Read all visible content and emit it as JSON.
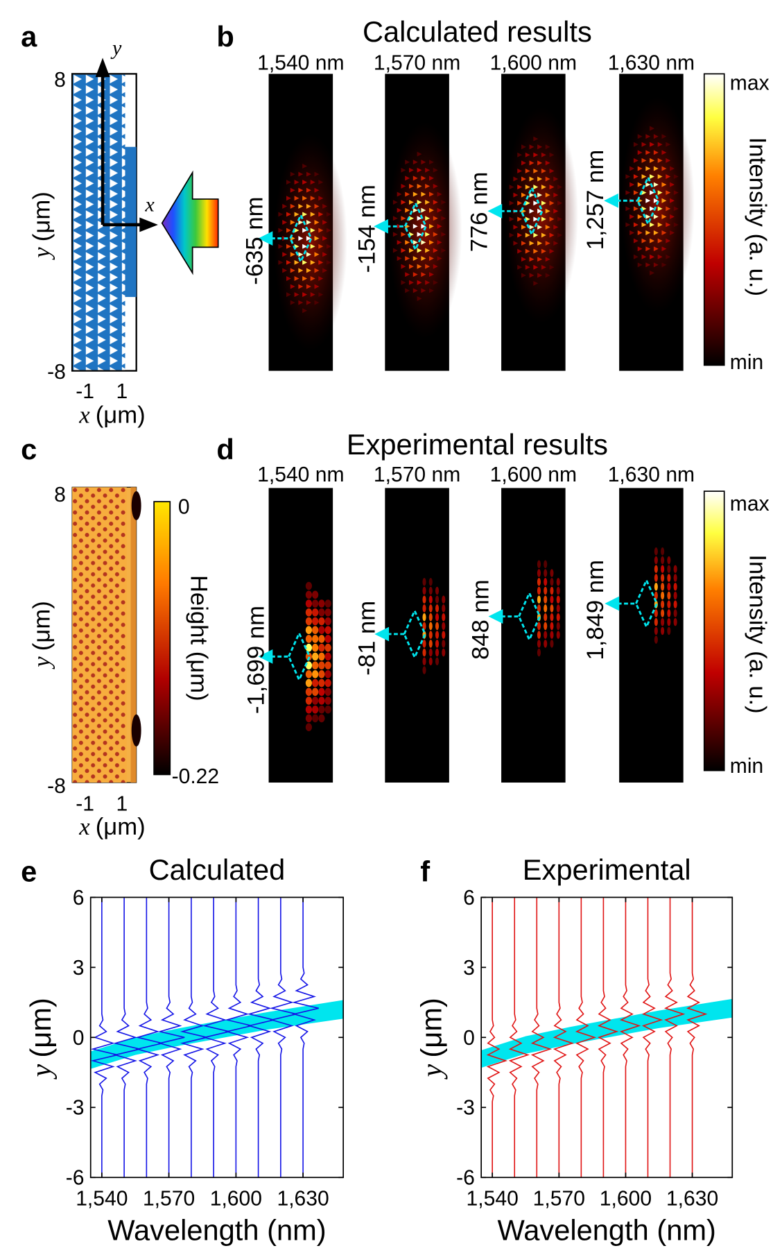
{
  "panels": {
    "a": {
      "letter": "a",
      "yticks": [
        8,
        -8
      ],
      "xticks": [
        -1,
        1
      ],
      "ylabel": [
        "y",
        "(μm)"
      ],
      "xlabel": [
        "x",
        "(μm)"
      ],
      "arrow_labels": [
        "y",
        "x"
      ]
    },
    "b": {
      "letter": "b",
      "title": "Calculated results",
      "columns": [
        "1,540 nm",
        "1,570 nm",
        "1,600 nm",
        "1,630 nm"
      ],
      "shifts": [
        "-635 nm",
        "-154 nm",
        "776 nm",
        "1,257 nm"
      ],
      "colorbar": {
        "max": "max",
        "min": "min",
        "label": "Intensity (a. u.)"
      }
    },
    "c": {
      "letter": "c",
      "yticks": [
        8,
        -8
      ],
      "xticks": [
        -1,
        1
      ],
      "ylabel": [
        "y",
        "(μm)"
      ],
      "xlabel": [
        "x",
        "(μm)"
      ],
      "colorbar": {
        "top": 0,
        "bottom": -0.22,
        "label": "Height (μm)"
      }
    },
    "d": {
      "letter": "d",
      "title": "Experimental results",
      "columns": [
        "1,540 nm",
        "1,570 nm",
        "1,600 nm",
        "1,630 nm"
      ],
      "shifts": [
        "-1,699 nm",
        "-81 nm",
        "848 nm",
        "1,849 nm"
      ],
      "colorbar": {
        "max": "max",
        "min": "min",
        "label": "Intensity (a. u.)"
      }
    },
    "e": {
      "letter": "e"
    },
    "f": {
      "letter": "f"
    }
  },
  "chart_data": [
    {
      "type": "line",
      "title": "Calculated",
      "xlabel": "Wavelength (nm)",
      "ylabel": [
        "y",
        "(μm)"
      ],
      "color": "#1414e6",
      "xlim": [
        1535,
        1648
      ],
      "ylim": [
        -6,
        6
      ],
      "xticks": [
        {
          "value": 1540,
          "label": "1,540"
        },
        {
          "value": 1570,
          "label": "1,570"
        },
        {
          "value": 1600,
          "label": "1,600"
        },
        {
          "value": 1630,
          "label": "1,630"
        }
      ],
      "yticks": [
        -6,
        -3,
        0,
        3,
        6
      ],
      "y": [
        -6,
        -3.5,
        -3.25,
        -3,
        -2.75,
        -2.5,
        -2.25,
        -2,
        -1.75,
        -1.5,
        -1.25,
        -1,
        -0.75,
        -0.5,
        -0.25,
        0,
        0.25,
        0.5,
        0.75,
        1,
        1.25,
        1.5,
        1.75,
        2,
        2.25,
        2.5,
        2.75,
        3,
        3.25,
        3.5,
        6
      ],
      "series": [
        {
          "wavelength": 1540,
          "values": [
            0,
            0,
            0,
            0,
            0,
            0,
            0.5,
            -1,
            2,
            -3,
            5,
            -4,
            7,
            -4,
            5,
            -3,
            2,
            -1,
            0.5,
            0,
            0,
            0,
            0,
            0,
            0,
            0,
            0,
            0,
            0,
            0,
            0
          ]
        },
        {
          "wavelength": 1550,
          "values": [
            0,
            0,
            0,
            0,
            0,
            0,
            0,
            0.5,
            -1,
            2,
            -3,
            5,
            -4,
            7,
            -4,
            5,
            -3,
            2,
            -1,
            0.5,
            0,
            0,
            0,
            0,
            0,
            0,
            0,
            0,
            0,
            0,
            0
          ]
        },
        {
          "wavelength": 1560,
          "values": [
            0,
            0,
            0,
            0,
            0,
            0,
            0,
            0,
            0.5,
            -1,
            2,
            -3,
            5,
            -4,
            7,
            -4,
            5,
            -3,
            2,
            -1,
            0.5,
            0,
            0,
            0,
            0,
            0,
            0,
            0,
            0,
            0,
            0
          ]
        },
        {
          "wavelength": 1570,
          "values": [
            0,
            0,
            0,
            0,
            0,
            0,
            0,
            0,
            0,
            0.5,
            -1,
            2,
            -3,
            5,
            -4,
            7,
            -4,
            5,
            -3,
            2,
            -1,
            0.5,
            0,
            0,
            0,
            0,
            0,
            0,
            0,
            0,
            0
          ]
        },
        {
          "wavelength": 1580,
          "values": [
            0,
            0,
            0,
            0,
            0,
            0,
            0,
            0,
            0,
            0.5,
            -1,
            2,
            -3,
            5,
            -4,
            7,
            -4,
            5,
            -3,
            2,
            -1,
            0.5,
            0,
            0,
            0,
            0,
            0,
            0,
            0,
            0,
            0
          ]
        },
        {
          "wavelength": 1590,
          "values": [
            0,
            0,
            0,
            0,
            0,
            0,
            0,
            0,
            0,
            0,
            0.5,
            -1,
            2,
            -3,
            5,
            -4,
            7,
            -4,
            5,
            -3,
            2,
            -1,
            0.5,
            0,
            0,
            0,
            0,
            0,
            0,
            0,
            0
          ]
        },
        {
          "wavelength": 1600,
          "values": [
            0,
            0,
            0,
            0,
            0,
            0,
            0,
            0,
            0,
            0,
            0,
            0.5,
            -1,
            2,
            -3,
            5,
            -4,
            7,
            -4,
            5,
            -3,
            2,
            -1,
            0.5,
            0,
            0,
            0,
            0,
            0,
            0,
            0
          ]
        },
        {
          "wavelength": 1610,
          "values": [
            0,
            0,
            0,
            0,
            0,
            0,
            0,
            0,
            0,
            0,
            0,
            0,
            0.5,
            -1,
            2,
            -3,
            5,
            -4,
            7,
            -4,
            5,
            -3,
            2,
            -1,
            0.5,
            0,
            0,
            0,
            0,
            0,
            0
          ]
        },
        {
          "wavelength": 1620,
          "values": [
            0,
            0,
            0,
            0,
            0,
            0,
            0,
            0,
            0,
            0,
            0,
            0,
            0,
            0.5,
            -1,
            2,
            -3,
            5,
            -4,
            7,
            -4,
            5,
            -3,
            2,
            -1,
            0.5,
            0,
            0,
            0,
            0,
            0
          ]
        },
        {
          "wavelength": 1630,
          "values": [
            0,
            0,
            0,
            0,
            0,
            0,
            0,
            0,
            0,
            0,
            0,
            0,
            0,
            0,
            0.5,
            -1,
            2,
            -3,
            5,
            -4,
            7,
            -4,
            5,
            -3,
            2,
            -1,
            0.5,
            0,
            0,
            0,
            0
          ]
        }
      ],
      "band": {
        "color": "#00e5ee",
        "x": [
          1535,
          1555,
          1575,
          1595,
          1615,
          1648
        ],
        "lower": [
          -1.35,
          -0.75,
          -0.35,
          0,
          0.35,
          0.8
        ],
        "upper": [
          -0.6,
          0,
          0.4,
          0.75,
          1.1,
          1.6
        ]
      }
    },
    {
      "type": "line",
      "title": "Experimental",
      "xlabel": "Wavelength (nm)",
      "ylabel": [
        "y",
        "(μm)"
      ],
      "color": "#e01414",
      "xlim": [
        1535,
        1648
      ],
      "ylim": [
        -6,
        6
      ],
      "xticks": [
        {
          "value": 1540,
          "label": "1,540"
        },
        {
          "value": 1570,
          "label": "1,570"
        },
        {
          "value": 1600,
          "label": "1,600"
        },
        {
          "value": 1630,
          "label": "1,630"
        }
      ],
      "yticks": [
        -6,
        -3,
        0,
        3,
        6
      ],
      "y": [
        -6,
        -3.5,
        -3.25,
        -3,
        -2.75,
        -2.5,
        -2.25,
        -2,
        -1.75,
        -1.5,
        -1.25,
        -1,
        -0.75,
        -0.5,
        -0.25,
        0,
        0.25,
        0.5,
        0.75,
        1,
        1.25,
        1.5,
        1.75,
        2,
        2.25,
        2.5,
        2.75,
        3,
        3.25,
        3.5,
        6
      ],
      "series": [
        {
          "wavelength": 1540,
          "values": [
            0,
            0,
            0,
            0,
            0,
            0.5,
            -1,
            1,
            -2,
            3,
            -2,
            6,
            -2,
            3,
            -2,
            1,
            -1,
            0.5,
            0,
            0,
            0,
            0,
            0,
            0,
            0,
            0,
            0,
            0,
            0,
            0,
            0
          ]
        },
        {
          "wavelength": 1550,
          "values": [
            0,
            0,
            0,
            0,
            0,
            0,
            0.5,
            -1,
            1,
            -2,
            3,
            -2,
            6,
            -2,
            3,
            -2,
            1,
            -1,
            0.5,
            0,
            0,
            0,
            0,
            0,
            0,
            0,
            0,
            0,
            0,
            0,
            0
          ]
        },
        {
          "wavelength": 1560,
          "values": [
            0,
            0,
            0,
            0,
            0,
            0,
            0,
            0.5,
            -1,
            1,
            -2,
            3,
            -2,
            6,
            -2,
            3,
            -2,
            1,
            -1,
            0.5,
            0,
            0,
            0,
            0,
            0,
            0,
            0,
            0,
            0,
            0,
            0
          ]
        },
        {
          "wavelength": 1570,
          "values": [
            0,
            0,
            0,
            0,
            0,
            0,
            0,
            0,
            0.5,
            -1,
            1,
            -2,
            3,
            -2,
            6,
            -2,
            3,
            -2,
            1,
            -1,
            0.5,
            0,
            0,
            0,
            0,
            0,
            0,
            0,
            0,
            0,
            0
          ]
        },
        {
          "wavelength": 1580,
          "values": [
            0,
            0,
            0,
            0,
            0,
            0,
            0,
            0,
            0,
            0.5,
            -1,
            1,
            -2,
            3,
            -2,
            6,
            -2,
            3,
            -2,
            1,
            -1,
            0.5,
            0,
            0,
            0,
            0,
            0,
            0,
            0,
            0,
            0
          ]
        },
        {
          "wavelength": 1590,
          "values": [
            0,
            0,
            0,
            0,
            0,
            0,
            0,
            0,
            0,
            0,
            0.5,
            -1,
            1,
            -2,
            3,
            -2,
            6,
            -2,
            3,
            -2,
            1,
            -1,
            0.5,
            0,
            0,
            0,
            0,
            0,
            0,
            0,
            0
          ]
        },
        {
          "wavelength": 1600,
          "values": [
            0,
            0,
            0,
            0,
            0,
            0,
            0,
            0,
            0,
            0,
            0,
            0.5,
            -1,
            1,
            -2,
            3,
            -2,
            6,
            -2,
            3,
            -2,
            1,
            -1,
            0.5,
            0,
            0,
            0,
            0,
            0,
            0,
            0
          ]
        },
        {
          "wavelength": 1610,
          "values": [
            0,
            0,
            0,
            0,
            0,
            0,
            0,
            0,
            0,
            0,
            0,
            0,
            0.5,
            -1,
            1,
            -2,
            3,
            -2,
            6,
            -2,
            3,
            -2,
            1,
            -1,
            0.5,
            0,
            0,
            0,
            0,
            0,
            0
          ]
        },
        {
          "wavelength": 1620,
          "values": [
            0,
            0,
            0,
            0,
            0,
            0,
            0,
            0,
            0,
            0,
            0,
            0,
            0,
            0.5,
            -1,
            1,
            -2,
            3,
            -2,
            6,
            -2,
            3,
            -2,
            1,
            -1,
            0.5,
            0,
            0,
            0,
            0,
            0
          ]
        },
        {
          "wavelength": 1630,
          "values": [
            0,
            0,
            0,
            0,
            0,
            0,
            0,
            0,
            0,
            0,
            0,
            0,
            0,
            0.5,
            -1,
            1,
            -2,
            3,
            -2,
            6,
            -2,
            3,
            -2,
            1,
            -1,
            0.5,
            0,
            0,
            0,
            0,
            0
          ]
        }
      ],
      "band": {
        "color": "#00e5ee",
        "x": [
          1535,
          1555,
          1575,
          1595,
          1615,
          1648
        ],
        "lower": [
          -1.3,
          -0.7,
          -0.3,
          0.05,
          0.4,
          0.85
        ],
        "upper": [
          -0.55,
          0.05,
          0.45,
          0.8,
          1.15,
          1.65
        ]
      }
    }
  ]
}
